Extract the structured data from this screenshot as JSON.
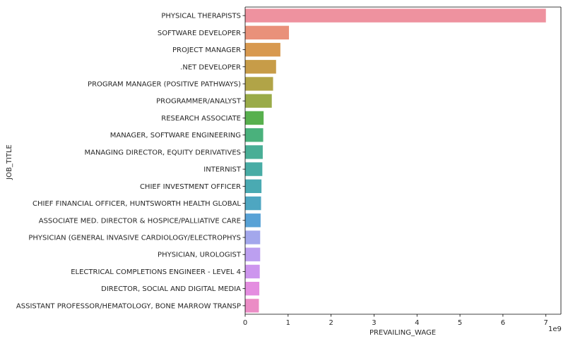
{
  "chart_data": {
    "type": "bar",
    "orientation": "horizontal",
    "xlabel": "PREVAILING_WAGE",
    "ylabel": "JOB_TITLE",
    "x_exponent_label": "1e9",
    "xlim": [
      0,
      7.35
    ],
    "x_ticks": [
      "0",
      "1",
      "2",
      "3",
      "4",
      "5",
      "6",
      "7"
    ],
    "x_scale_note": "values in units of 1e9",
    "grid": false,
    "categories": [
      "PHYSICAL THERAPISTS",
      "SOFTWARE DEVELOPER",
      "PROJECT MANAGER",
      ".NET DEVELOPER",
      "PROGRAM MANAGER (POSITIVE PATHWAYS)",
      "PROGRAMMER/ANALYST",
      "RESEARCH ASSOCIATE",
      "MANAGER, SOFTWARE ENGINEERING",
      "MANAGING DIRECTOR, EQUITY DERIVATIVES",
      "INTERNIST",
      "CHIEF INVESTMENT OFFICER",
      "CHIEF FINANCIAL OFFICER, HUNTSWORTH HEALTH GLOBAL",
      "ASSOCIATE MED. DIRECTOR & HOSPICE/PALLIATIVE CARE",
      "PHYSICIAN (GENERAL INVASIVE CARDIOLOGY/ELECTROPHYS",
      "PHYSICIAN, UROLOGIST",
      "ELECTRICAL COMPLETIONS ENGINEER - LEVEL 4",
      "DIRECTOR, SOCIAL AND DIGITAL MEDIA",
      "ASSISTANT PROFESSOR/HEMATOLOGY, BONE MARROW TRANSP"
    ],
    "values": [
      7.0,
      1.02,
      0.82,
      0.72,
      0.65,
      0.62,
      0.43,
      0.42,
      0.41,
      0.4,
      0.38,
      0.37,
      0.36,
      0.35,
      0.35,
      0.34,
      0.33,
      0.32
    ],
    "colors": [
      "#ee929f",
      "#e9917a",
      "#d8994f",
      "#c79c48",
      "#b1a447",
      "#9aab48",
      "#58b04e",
      "#4ab17c",
      "#49ae96",
      "#48aca5",
      "#4aaab2",
      "#4ea6c1",
      "#58a2d6",
      "#a3a7ec",
      "#bc9ff0",
      "#cd95ee",
      "#e48de0",
      "#eb8cc5"
    ]
  }
}
